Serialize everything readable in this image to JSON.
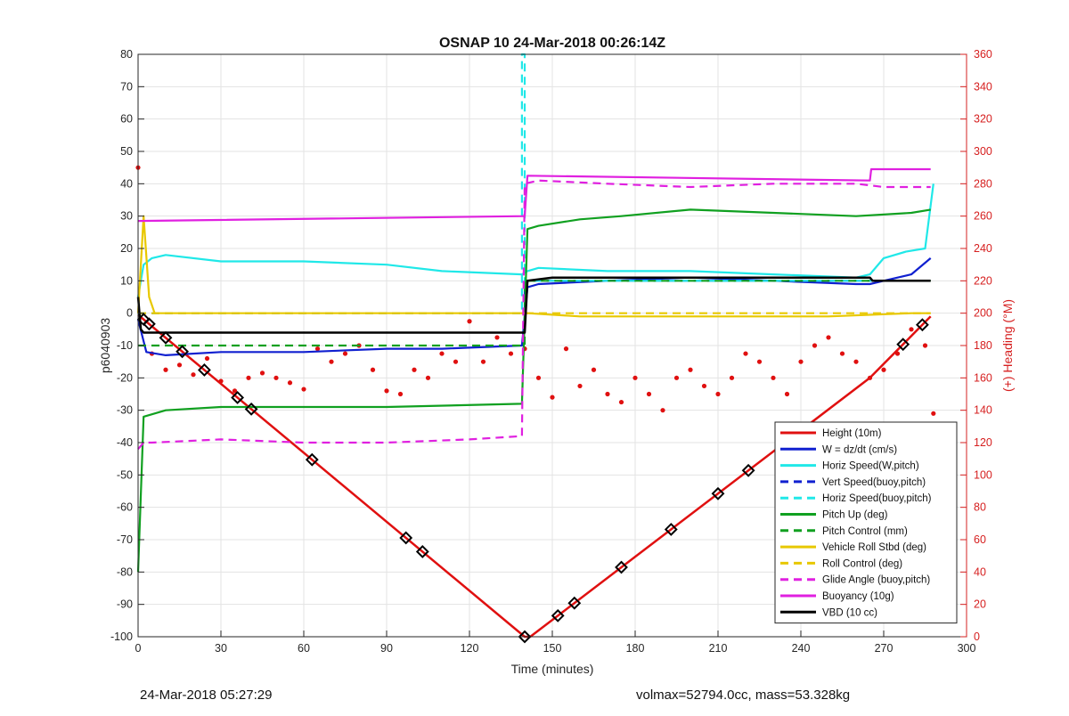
{
  "footer": {
    "left": "24-Mar-2018 05:27:29",
    "right": "volmax=52794.0cc, mass=53.328kg"
  },
  "chart_data": {
    "type": "line",
    "title": "OSNAP 10 24-Mar-2018 00:26:14Z",
    "xlabel": "Time (minutes)",
    "ylabel": "p6040903",
    "ylabel_right": "(+) Heading (°M)",
    "xlim": [
      0,
      300
    ],
    "ylim": [
      -100,
      80
    ],
    "ylim_right": [
      0,
      360
    ],
    "xticks": [
      0,
      30,
      60,
      90,
      120,
      150,
      180,
      210,
      240,
      270,
      300
    ],
    "yticks": [
      -100,
      -90,
      -80,
      -70,
      -60,
      -50,
      -40,
      -30,
      -20,
      -10,
      0,
      10,
      20,
      30,
      40,
      50,
      60,
      70,
      80
    ],
    "yticks_right": [
      0,
      20,
      40,
      60,
      80,
      100,
      120,
      140,
      160,
      180,
      200,
      220,
      240,
      260,
      280,
      300,
      320,
      340,
      360
    ],
    "grid": true,
    "legend_position": "bottom-right",
    "colors": {
      "red": "#e01010",
      "blue": "#1020d0",
      "cyan": "#20e8e8",
      "green": "#10a020",
      "gold": "#e8c800",
      "magenta": "#e020e0",
      "black": "#000000",
      "heading": "#e01010"
    },
    "series": [
      {
        "name": "Height (10m)",
        "color": "#e01010",
        "dash": false,
        "width": 2.5,
        "x": [
          0,
          140,
          142,
          265,
          287
        ],
        "y": [
          -0.5,
          -100,
          -100,
          -20,
          -1
        ]
      },
      {
        "name": "W = dz/dt (cm/s)",
        "color": "#1020d0",
        "dash": false,
        "width": 2.2,
        "x": [
          0,
          3,
          10,
          30,
          60,
          90,
          110,
          139,
          141,
          145,
          170,
          200,
          230,
          260,
          265,
          270,
          280,
          287
        ],
        "y": [
          -2,
          -12,
          -13,
          -12,
          -12,
          -11,
          -11,
          -10,
          8,
          9,
          10,
          11,
          10,
          9,
          9,
          10,
          12,
          17
        ]
      },
      {
        "name": "Horiz Speed(W,pitch)",
        "color": "#20e8e8",
        "dash": false,
        "width": 2.2,
        "x": [
          0,
          2,
          5,
          10,
          30,
          60,
          90,
          110,
          139,
          141,
          145,
          170,
          200,
          230,
          260,
          265,
          270,
          278,
          285,
          288
        ],
        "y": [
          5,
          15,
          17,
          18,
          16,
          16,
          15,
          13,
          12,
          13,
          14,
          13,
          13,
          12,
          11,
          12,
          17,
          19,
          20,
          40
        ]
      },
      {
        "name": "Vert Speed(buoy,pitch)",
        "color": "#1020d0",
        "dash": true,
        "width": 2.2,
        "x": [
          0,
          140,
          140,
          287
        ],
        "y": [
          0,
          0,
          10,
          10
        ]
      },
      {
        "name": "Horiz Speed(buoy,pitch)",
        "color": "#20e8e8",
        "dash": true,
        "width": 2.2,
        "x": [
          0,
          139,
          139,
          140,
          140,
          287
        ],
        "y": [
          0,
          0,
          80,
          80,
          10,
          10
        ]
      },
      {
        "name": "Pitch Up (deg)",
        "color": "#10a020",
        "dash": false,
        "width": 2.2,
        "x": [
          0,
          2,
          10,
          30,
          60,
          90,
          139,
          141,
          145,
          160,
          175,
          200,
          230,
          260,
          280,
          287
        ],
        "y": [
          -80,
          -32,
          -30,
          -29,
          -29,
          -29,
          -28,
          26,
          27,
          29,
          30,
          32,
          31,
          30,
          31,
          32
        ]
      },
      {
        "name": "Pitch Control (mm)",
        "color": "#10a020",
        "dash": true,
        "width": 2.2,
        "x": [
          0,
          140,
          140,
          287
        ],
        "y": [
          -10,
          -10,
          10,
          10
        ]
      },
      {
        "name": "Vehicle Roll Stbd (deg)",
        "color": "#e8c800",
        "dash": false,
        "width": 2.2,
        "x": [
          0,
          2,
          4,
          6,
          10,
          60,
          100,
          139,
          141,
          160,
          200,
          250,
          280,
          287
        ],
        "y": [
          0,
          30,
          5,
          0,
          0,
          0,
          0,
          0,
          0,
          -1,
          -1,
          -1,
          0,
          0
        ]
      },
      {
        "name": "Roll Control (deg)",
        "color": "#e8c800",
        "dash": true,
        "width": 2.2,
        "x": [
          0,
          287
        ],
        "y": [
          0,
          0
        ]
      },
      {
        "name": "Glide Angle (buoy,pitch)",
        "color": "#e020e0",
        "dash": true,
        "width": 2.2,
        "x": [
          0,
          2,
          5,
          30,
          60,
          90,
          120,
          139,
          140,
          145,
          170,
          200,
          230,
          260,
          270,
          280,
          287
        ],
        "y": [
          -42,
          -40,
          -40,
          -39,
          -40,
          -40,
          -39,
          -38,
          40,
          41,
          40,
          39,
          40,
          40,
          39,
          39,
          39
        ]
      },
      {
        "name": "Buoyancy (10g)",
        "color": "#e020e0",
        "dash": false,
        "width": 2.2,
        "x": [
          0,
          140,
          141,
          265,
          265.5,
          287
        ],
        "y": [
          28.5,
          30,
          42.5,
          41,
          44.5,
          44.5
        ]
      },
      {
        "name": "VBD (10 cc)",
        "color": "#000000",
        "dash": false,
        "width": 2.5,
        "x": [
          0,
          1,
          2,
          140,
          141,
          150,
          265,
          266,
          287
        ],
        "y": [
          5,
          -5,
          -6,
          -6,
          10,
          11,
          11,
          10,
          10
        ]
      }
    ],
    "heading": {
      "name": "Heading",
      "axis": "right",
      "color": "#e01010",
      "x": [
        0,
        5,
        10,
        15,
        20,
        25,
        30,
        35,
        40,
        45,
        50,
        55,
        60,
        65,
        70,
        75,
        80,
        85,
        90,
        95,
        100,
        105,
        110,
        115,
        120,
        125,
        130,
        135,
        140,
        145,
        150,
        155,
        160,
        165,
        170,
        175,
        180,
        185,
        190,
        195,
        200,
        205,
        210,
        215,
        220,
        225,
        230,
        235,
        240,
        245,
        250,
        255,
        260,
        265,
        270,
        275,
        280,
        285,
        288
      ],
      "y": [
        290,
        175,
        165,
        168,
        162,
        172,
        158,
        152,
        160,
        163,
        160,
        157,
        153,
        178,
        170,
        175,
        180,
        165,
        152,
        150,
        165,
        160,
        175,
        170,
        195,
        170,
        185,
        175,
        178,
        160,
        148,
        178,
        155,
        165,
        150,
        145,
        160,
        150,
        140,
        160,
        165,
        155,
        150,
        160,
        175,
        170,
        160,
        150,
        170,
        180,
        185,
        175,
        170,
        160,
        165,
        175,
        190,
        180,
        138
      ]
    },
    "markers": {
      "symbol": "diamond",
      "x": [
        2,
        4,
        10,
        16,
        24,
        36,
        41,
        63,
        97,
        103,
        140,
        152,
        158,
        175,
        193,
        210,
        221,
        236,
        277,
        284
      ]
    }
  }
}
